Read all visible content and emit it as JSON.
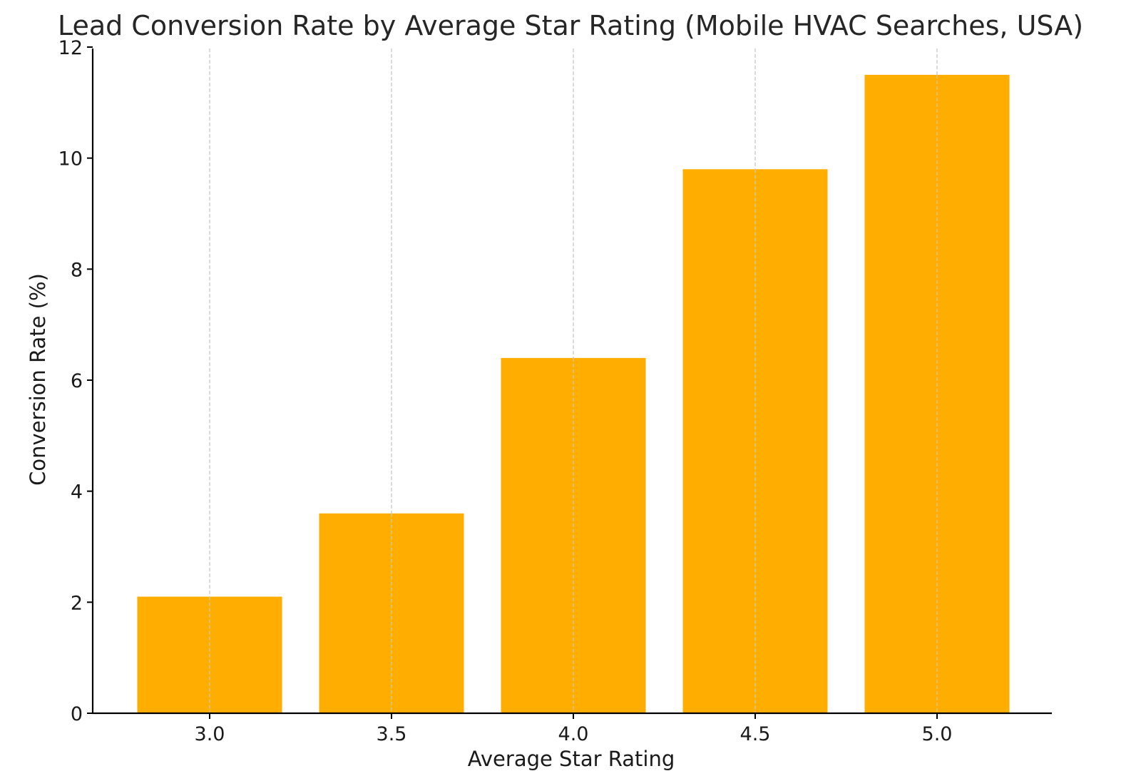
{
  "chart_data": {
    "type": "bar",
    "title": "Lead Conversion Rate by Average Star Rating (Mobile HVAC Searches, USA)",
    "xlabel": "Average Star Rating",
    "ylabel": "Conversion Rate (%)",
    "categories": [
      "3.0",
      "3.5",
      "4.0",
      "4.5",
      "5.0"
    ],
    "values": [
      2.1,
      3.6,
      6.4,
      9.8,
      11.5
    ],
    "ylim": [
      0,
      12
    ],
    "yticks": [
      0,
      2,
      4,
      6,
      8,
      10,
      12
    ],
    "grid": "vertical dashed",
    "legend": "none",
    "colors": {
      "bar": "#FFAE00",
      "grid": "#c8c8c8",
      "axis": "#000000"
    }
  }
}
